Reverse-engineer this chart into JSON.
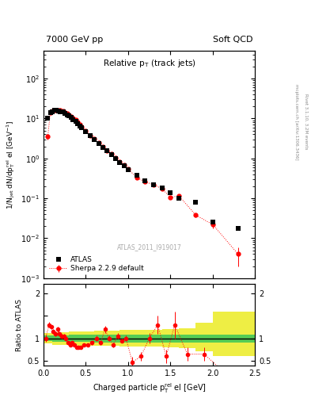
{
  "title_left": "7000 GeV pp",
  "title_right": "Soft QCD",
  "watermark": "ATLAS_2011_I919017",
  "right_label1": "Rivet 3.1.10, 3.2M events",
  "right_label2": "mcplots.cern.ch [arXiv:1306.3436]",
  "ylabel_main": "1/N$_{jet}$ dN/dp$^{rel}_{T}$ el [GeV$^{-1}$]",
  "ylabel_ratio": "Ratio to ATLAS",
  "xlabel": "Charged particle p$^{rel}_{T}$ el [GeV]",
  "atlas_x": [
    0.05,
    0.08,
    0.1,
    0.13,
    0.15,
    0.18,
    0.2,
    0.23,
    0.25,
    0.28,
    0.3,
    0.33,
    0.35,
    0.38,
    0.4,
    0.43,
    0.45,
    0.5,
    0.55,
    0.6,
    0.65,
    0.7,
    0.75,
    0.8,
    0.85,
    0.9,
    0.95,
    1.0,
    1.1,
    1.2,
    1.3,
    1.4,
    1.5,
    1.6,
    1.8,
    2.0,
    2.3
  ],
  "atlas_y": [
    10.0,
    14.0,
    15.0,
    16.0,
    16.0,
    15.5,
    15.0,
    14.5,
    13.5,
    12.5,
    11.5,
    10.5,
    9.5,
    8.5,
    7.5,
    6.5,
    5.8,
    4.8,
    3.8,
    3.0,
    2.4,
    1.9,
    1.55,
    1.25,
    1.0,
    0.8,
    0.65,
    0.52,
    0.38,
    0.28,
    0.22,
    0.18,
    0.14,
    0.1,
    0.08,
    0.025,
    0.018
  ],
  "sherpa_x": [
    0.05,
    0.08,
    0.1,
    0.13,
    0.15,
    0.18,
    0.2,
    0.23,
    0.25,
    0.28,
    0.3,
    0.33,
    0.35,
    0.38,
    0.4,
    0.43,
    0.45,
    0.5,
    0.55,
    0.6,
    0.65,
    0.7,
    0.75,
    0.8,
    0.85,
    0.9,
    0.95,
    1.0,
    1.1,
    1.2,
    1.3,
    1.4,
    1.5,
    1.6,
    1.8,
    2.0,
    2.3
  ],
  "sherpa_y": [
    3.5,
    14.2,
    15.5,
    16.2,
    16.5,
    16.2,
    15.8,
    15.2,
    14.2,
    13.2,
    12.2,
    11.2,
    10.2,
    9.2,
    8.2,
    7.2,
    6.2,
    5.0,
    3.8,
    3.1,
    2.5,
    1.95,
    1.6,
    1.28,
    1.02,
    0.82,
    0.68,
    0.55,
    0.33,
    0.26,
    0.22,
    0.175,
    0.105,
    0.115,
    0.038,
    0.022,
    0.004
  ],
  "sherpa_yerr_lo": [
    0.5,
    0.4,
    0.4,
    0.4,
    0.4,
    0.4,
    0.4,
    0.4,
    0.3,
    0.3,
    0.3,
    0.3,
    0.3,
    0.3,
    0.3,
    0.2,
    0.2,
    0.2,
    0.15,
    0.12,
    0.1,
    0.08,
    0.06,
    0.05,
    0.04,
    0.04,
    0.03,
    0.03,
    0.02,
    0.02,
    0.015,
    0.012,
    0.008,
    0.01,
    0.005,
    0.004,
    0.002
  ],
  "sherpa_yerr_hi": [
    0.5,
    0.4,
    0.4,
    0.4,
    0.4,
    0.4,
    0.4,
    0.4,
    0.3,
    0.3,
    0.3,
    0.3,
    0.3,
    0.3,
    0.3,
    0.2,
    0.2,
    0.2,
    0.15,
    0.12,
    0.1,
    0.08,
    0.06,
    0.05,
    0.04,
    0.04,
    0.03,
    0.03,
    0.02,
    0.02,
    0.015,
    0.012,
    0.008,
    0.01,
    0.005,
    0.004,
    0.002
  ],
  "ratio_x": [
    0.025,
    0.065,
    0.09,
    0.115,
    0.14,
    0.165,
    0.19,
    0.215,
    0.24,
    0.265,
    0.29,
    0.315,
    0.34,
    0.365,
    0.39,
    0.415,
    0.44,
    0.475,
    0.525,
    0.575,
    0.625,
    0.675,
    0.725,
    0.775,
    0.825,
    0.875,
    0.925,
    0.975,
    1.05,
    1.15,
    1.25,
    1.35,
    1.45,
    1.55,
    1.7,
    1.9,
    2.15
  ],
  "ratio_y": [
    1.0,
    1.3,
    1.25,
    1.15,
    1.1,
    1.2,
    1.1,
    1.05,
    1.05,
    1.0,
    0.9,
    0.85,
    0.9,
    0.85,
    0.8,
    0.8,
    0.8,
    0.85,
    0.85,
    0.9,
    1.0,
    0.9,
    1.2,
    1.0,
    0.85,
    1.05,
    0.95,
    1.0,
    0.47,
    0.6,
    1.0,
    1.3,
    0.6,
    1.3,
    0.65,
    0.65,
    0.22
  ],
  "ratio_yerr": [
    0.08,
    0.06,
    0.05,
    0.05,
    0.05,
    0.06,
    0.05,
    0.05,
    0.05,
    0.05,
    0.04,
    0.04,
    0.04,
    0.04,
    0.04,
    0.04,
    0.04,
    0.04,
    0.04,
    0.04,
    0.06,
    0.05,
    0.08,
    0.06,
    0.05,
    0.06,
    0.05,
    0.06,
    0.12,
    0.1,
    0.12,
    0.2,
    0.15,
    0.3,
    0.15,
    0.15,
    0.12
  ],
  "green_band_x": [
    0.0,
    0.1,
    0.2,
    0.3,
    0.4,
    0.5,
    0.6,
    0.7,
    0.8,
    0.9,
    1.0,
    1.2,
    1.4,
    1.6,
    1.8,
    2.0,
    2.5
  ],
  "green_band_lo": [
    0.94,
    0.93,
    0.93,
    0.92,
    0.92,
    0.92,
    0.91,
    0.91,
    0.91,
    0.91,
    0.91,
    0.91,
    0.91,
    0.91,
    0.91,
    0.91,
    0.91
  ],
  "green_band_hi": [
    1.06,
    1.07,
    1.07,
    1.08,
    1.08,
    1.08,
    1.09,
    1.09,
    1.09,
    1.09,
    1.09,
    1.09,
    1.09,
    1.09,
    1.09,
    1.09,
    1.09
  ],
  "yellow_band_x": [
    0.0,
    0.1,
    0.2,
    0.3,
    0.4,
    0.5,
    0.6,
    0.7,
    0.8,
    0.9,
    1.0,
    1.2,
    1.4,
    1.6,
    1.8,
    2.0,
    2.5
  ],
  "yellow_band_lo": [
    0.88,
    0.86,
    0.86,
    0.85,
    0.84,
    0.84,
    0.83,
    0.83,
    0.83,
    0.82,
    0.82,
    0.82,
    0.8,
    0.78,
    0.72,
    0.6,
    0.5
  ],
  "yellow_band_hi": [
    1.12,
    1.14,
    1.14,
    1.15,
    1.16,
    1.16,
    1.17,
    1.17,
    1.17,
    1.18,
    1.18,
    1.18,
    1.2,
    1.22,
    1.35,
    1.6,
    2.0
  ],
  "xlim": [
    0.0,
    2.5
  ],
  "ylim_main": [
    0.001,
    500
  ],
  "ylim_ratio": [
    0.4,
    2.2
  ],
  "atlas_color": "black",
  "sherpa_color": "red",
  "green_color": "#55cc55",
  "yellow_color": "#eeee44"
}
